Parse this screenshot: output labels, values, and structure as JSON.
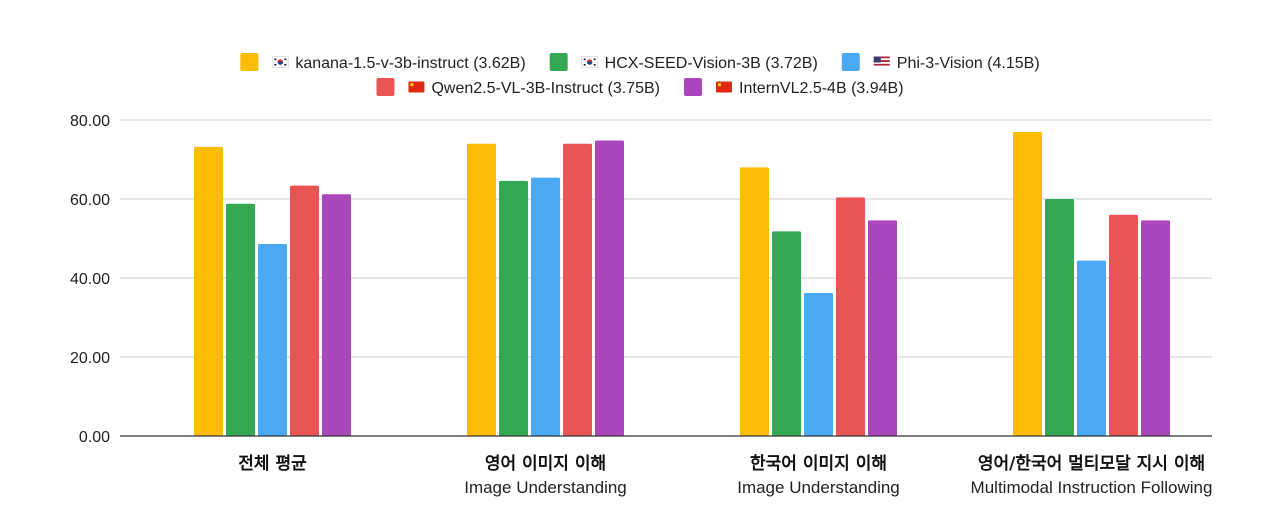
{
  "chart_data": {
    "type": "bar",
    "title": "",
    "xlabel": "",
    "ylabel": "",
    "ylim": [
      0,
      80
    ],
    "yticks": [
      "0.00",
      "20.00",
      "40.00",
      "60.00",
      "80.00"
    ],
    "grid": true,
    "legend_position": "top-center",
    "categories": [
      {
        "ko": "전체 평균",
        "en": ""
      },
      {
        "ko": "영어 이미지 이해",
        "en": "Image Understanding"
      },
      {
        "ko": "한국어 이미지 이해",
        "en": "Image Understanding"
      },
      {
        "ko": "영어/한국어 멀티모달 지시 이해",
        "en": "Multimodal Instruction Following"
      }
    ],
    "series": [
      {
        "name": "kanana-1.5-v-3b-instruct (3.62B)",
        "flag": "kr",
        "color": "#FBBC04",
        "values": [
          73.2,
          74.0,
          68.0,
          77.0
        ]
      },
      {
        "name": "HCX-SEED-Vision-3B (3.72B)",
        "flag": "kr",
        "color": "#34A853",
        "values": [
          58.8,
          64.6,
          51.8,
          60.0
        ]
      },
      {
        "name": "Phi-3-Vision (4.15B)",
        "flag": "us",
        "color": "#4AA8F5",
        "values": [
          48.6,
          65.4,
          36.2,
          44.4
        ]
      },
      {
        "name": "Qwen2.5-VL-3B-Instruct (3.75B)",
        "flag": "cn",
        "color": "#EA5454",
        "values": [
          63.4,
          74.0,
          60.4,
          56.0
        ]
      },
      {
        "name": "InternVL2.5-4B (3.94B)",
        "flag": "cn",
        "color": "#AB47BC",
        "values": [
          61.2,
          74.8,
          54.6,
          54.6
        ]
      }
    ]
  }
}
